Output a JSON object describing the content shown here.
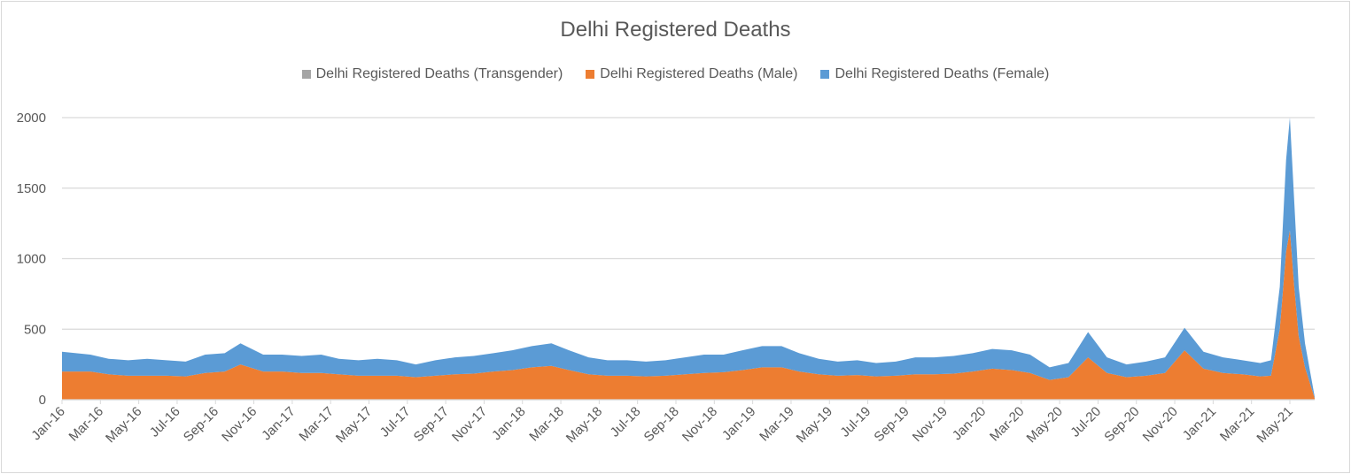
{
  "chart_data": {
    "type": "area",
    "stacked": true,
    "title": "Delhi Registered Deaths",
    "xlabel": "",
    "ylabel": "",
    "ylim": [
      0,
      2000
    ],
    "yticks": [
      0,
      500,
      1000,
      1500,
      2000
    ],
    "grid": true,
    "legend": "top",
    "xtick_labels": [
      "Jan-16",
      "Mar-16",
      "May-16",
      "Jul-16",
      "Sep-16",
      "Nov-16",
      "Jan-17",
      "Mar-17",
      "May-17",
      "Jul-17",
      "Sep-17",
      "Nov-17",
      "Jan-18",
      "Mar-18",
      "May-18",
      "Jul-18",
      "Sep-18",
      "Nov-18",
      "Jan-19",
      "Mar-19",
      "May-19",
      "Jul-19",
      "Sep-19",
      "Nov-19",
      "Jan-20",
      "Mar-20",
      "May-20",
      "Jul-20",
      "Sep-20",
      "Nov-20",
      "Jan-21",
      "Mar-21",
      "May-21"
    ],
    "x": [
      "2016-01-01",
      "2016-02-15",
      "2016-03-15",
      "2016-04-15",
      "2016-05-15",
      "2016-06-15",
      "2016-07-15",
      "2016-08-15",
      "2016-09-15",
      "2016-10-10",
      "2016-11-15",
      "2016-12-15",
      "2017-01-15",
      "2017-02-15",
      "2017-03-15",
      "2017-04-15",
      "2017-05-15",
      "2017-06-15",
      "2017-07-15",
      "2017-08-15",
      "2017-09-15",
      "2017-10-15",
      "2017-11-15",
      "2017-12-15",
      "2018-01-15",
      "2018-02-15",
      "2018-03-15",
      "2018-04-15",
      "2018-05-15",
      "2018-06-15",
      "2018-07-15",
      "2018-08-15",
      "2018-09-15",
      "2018-10-15",
      "2018-11-15",
      "2018-12-15",
      "2019-01-15",
      "2019-02-15",
      "2019-03-15",
      "2019-04-15",
      "2019-05-15",
      "2019-06-15",
      "2019-07-15",
      "2019-08-15",
      "2019-09-15",
      "2019-10-15",
      "2019-11-15",
      "2019-12-15",
      "2020-01-15",
      "2020-02-15",
      "2020-03-15",
      "2020-04-15",
      "2020-05-15",
      "2020-06-15",
      "2020-07-15",
      "2020-08-15",
      "2020-09-15",
      "2020-10-15",
      "2020-11-15",
      "2020-12-15",
      "2021-01-15",
      "2021-02-15",
      "2021-03-15",
      "2021-04-01",
      "2021-04-15",
      "2021-04-25",
      "2021-05-01",
      "2021-05-08",
      "2021-05-15",
      "2021-05-25",
      "2021-06-09"
    ],
    "series": [
      {
        "name": "Delhi Registered Deaths (Transgender)",
        "color": "#a5a5a5",
        "values": [
          0,
          0,
          0,
          0,
          0,
          0,
          0,
          0,
          0,
          0,
          0,
          0,
          0,
          0,
          0,
          0,
          0,
          0,
          0,
          0,
          0,
          0,
          0,
          0,
          0,
          0,
          0,
          0,
          0,
          0,
          0,
          0,
          0,
          0,
          0,
          0,
          0,
          0,
          0,
          0,
          0,
          0,
          0,
          0,
          0,
          0,
          0,
          0,
          0,
          0,
          0,
          0,
          0,
          0,
          0,
          0,
          0,
          0,
          0,
          0,
          0,
          0,
          0,
          0,
          0,
          0,
          0,
          0,
          0,
          0,
          0
        ]
      },
      {
        "name": "Delhi Registered Deaths (Male)",
        "color": "#ed7d31",
        "values": [
          200,
          200,
          180,
          170,
          170,
          170,
          165,
          190,
          200,
          250,
          200,
          200,
          190,
          190,
          180,
          170,
          170,
          170,
          160,
          170,
          180,
          185,
          200,
          210,
          230,
          240,
          210,
          180,
          170,
          170,
          165,
          170,
          180,
          190,
          195,
          210,
          230,
          230,
          200,
          180,
          170,
          175,
          165,
          170,
          180,
          180,
          185,
          200,
          220,
          210,
          190,
          140,
          160,
          300,
          190,
          160,
          170,
          190,
          350,
          220,
          190,
          180,
          165,
          170,
          500,
          1050,
          1200,
          800,
          450,
          230,
          10
        ]
      },
      {
        "name": "Delhi Registered Deaths (Female)",
        "color": "#5b9bd5",
        "values": [
          140,
          120,
          110,
          110,
          120,
          110,
          105,
          130,
          130,
          150,
          120,
          120,
          120,
          130,
          110,
          110,
          120,
          110,
          90,
          110,
          120,
          125,
          130,
          140,
          150,
          160,
          140,
          120,
          110,
          110,
          105,
          110,
          120,
          130,
          125,
          140,
          150,
          150,
          130,
          110,
          100,
          105,
          95,
          100,
          120,
          120,
          125,
          130,
          140,
          140,
          130,
          90,
          100,
          180,
          110,
          90,
          100,
          110,
          160,
          120,
          110,
          100,
          95,
          110,
          300,
          650,
          800,
          600,
          350,
          170,
          10
        ]
      }
    ]
  }
}
